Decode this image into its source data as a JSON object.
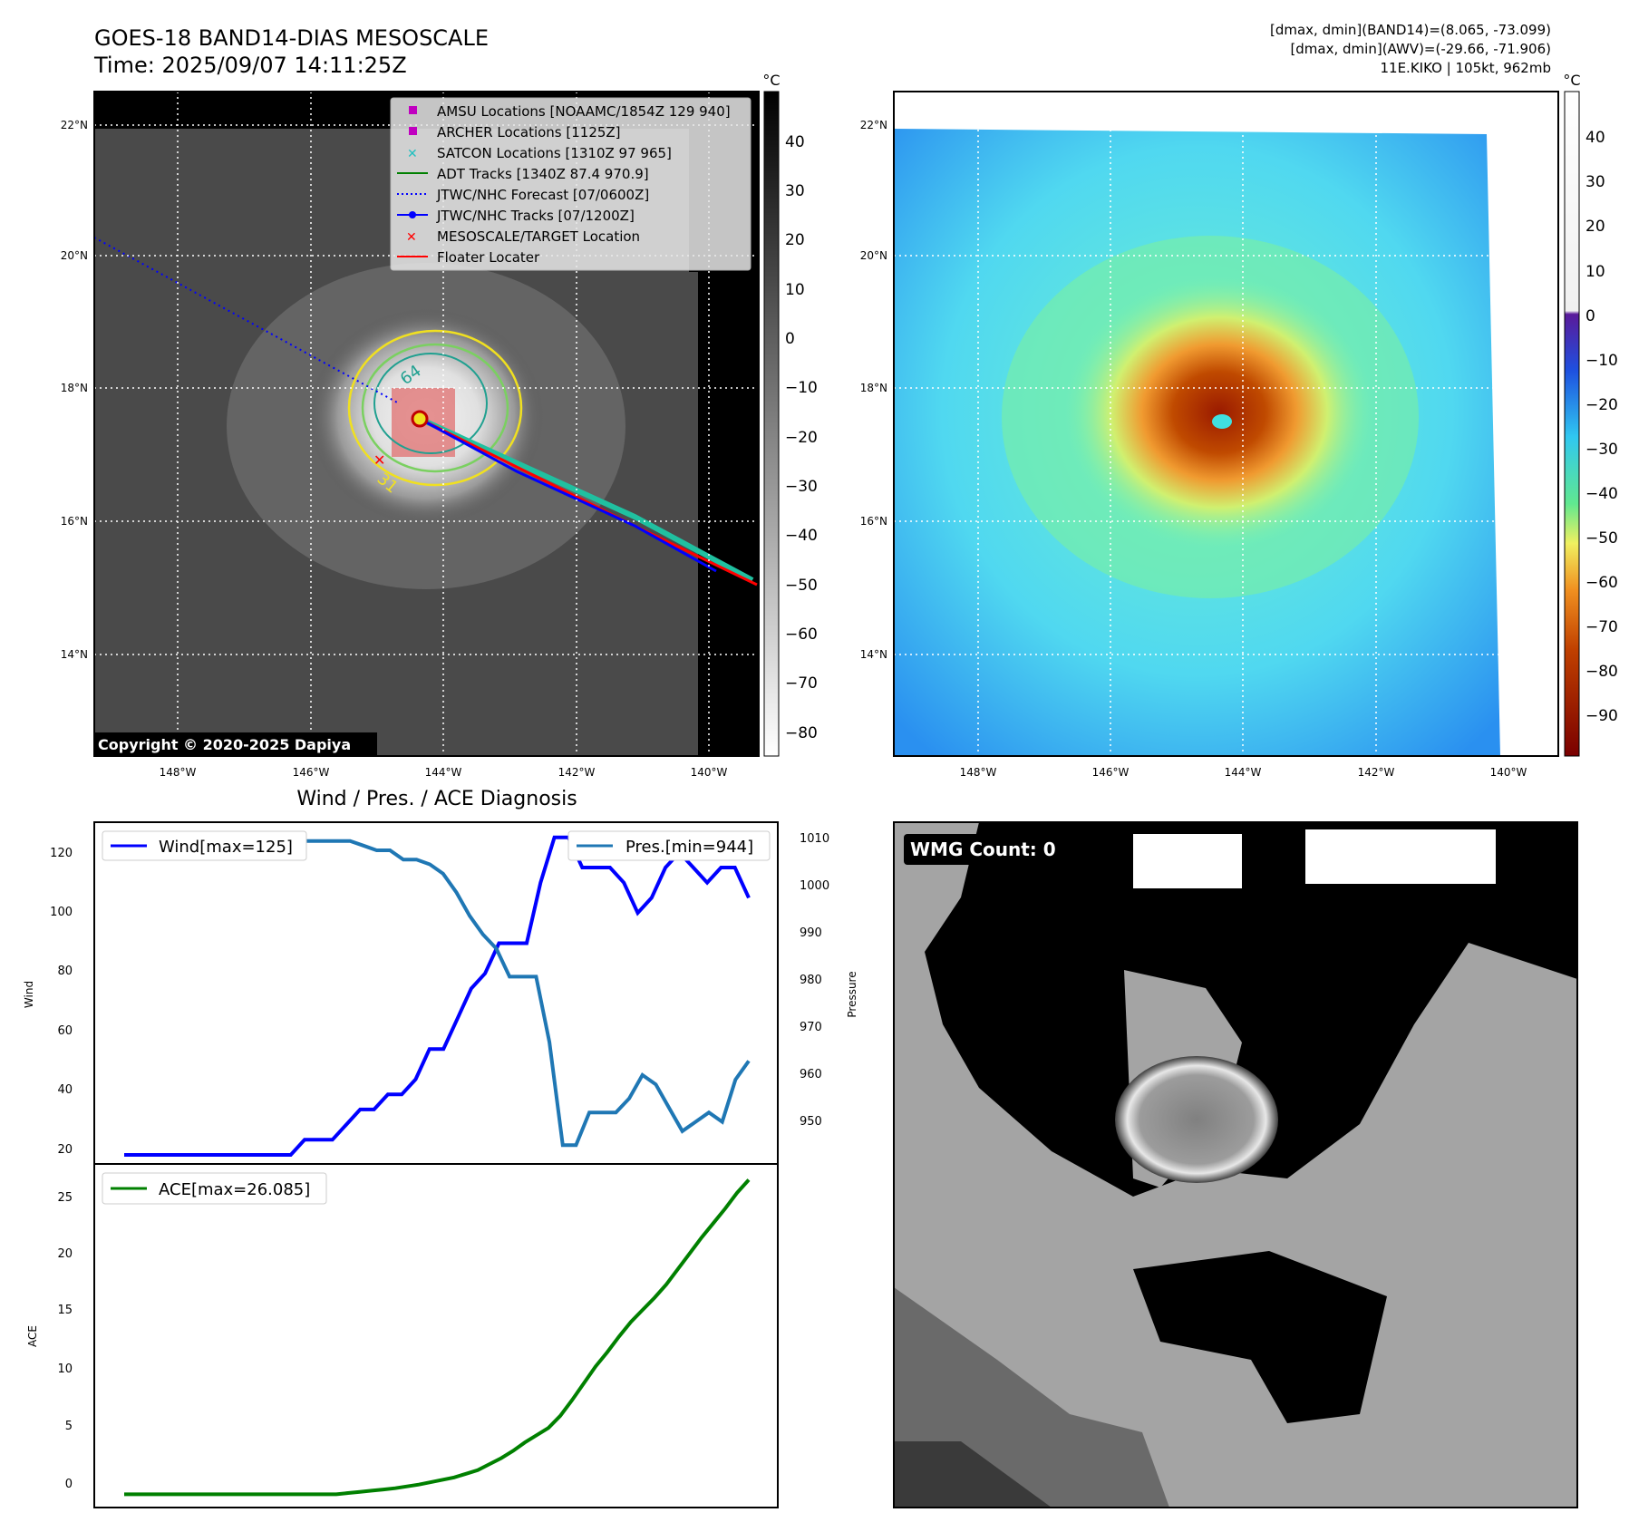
{
  "header": {
    "title": "GOES-18 BAND14-DIAS MESOSCALE",
    "time": "Time: 2025/09/07 14:11:25Z",
    "stats_line1": "[dmax, dmin](BAND14)=(8.065, -73.099)",
    "stats_line2": "[dmax, dmin](AWV)=(-29.66, -71.906)",
    "storm_info": "11E.KIKO | 105kt, 962mb"
  },
  "map_axes": {
    "lat_labels": [
      "22°N",
      "20°N",
      "18°N",
      "16°N",
      "14°N"
    ],
    "lon_labels": [
      "148°W",
      "146°W",
      "144°W",
      "142°W",
      "140°W"
    ],
    "unit": "°C"
  },
  "ir_panel": {
    "colorbar_ticks": [
      "40",
      "30",
      "20",
      "10",
      "0",
      "−10",
      "−20",
      "−30",
      "−40",
      "−50",
      "−60",
      "−70",
      "−80"
    ],
    "legend": [
      {
        "label": "AMSU Locations [NOAAMC/1854Z 129 940]",
        "color": "#c000c0",
        "marker": "square"
      },
      {
        "label": "ARCHER Locations [1125Z]",
        "color": "#c000c0",
        "marker": "square"
      },
      {
        "label": "SATCON Locations [1310Z 97 965]",
        "color": "#20c0c0",
        "marker": "x"
      },
      {
        "label": "ADT Tracks [1340Z 87.4 970.9]",
        "color": "#008000",
        "marker": "line"
      },
      {
        "label": "JTWC/NHC Forecast [07/0600Z]",
        "color": "#0000ff",
        "marker": "dotted"
      },
      {
        "label": "JTWC/NHC Tracks [07/1200Z]",
        "color": "#0000ff",
        "marker": "line-dot"
      },
      {
        "label": "MESOSCALE/TARGET Location",
        "color": "#ff0000",
        "marker": "x"
      },
      {
        "label": "Floater Locater",
        "color": "#ff0000",
        "marker": "line"
      }
    ],
    "contour_labels": [
      "64",
      "31"
    ],
    "copyright": "Copyright © 2020-2025 Dapiya"
  },
  "awv_panel": {
    "colorbar_ticks": [
      "40",
      "30",
      "20",
      "10",
      "0",
      "−10",
      "−20",
      "−30",
      "−40",
      "−50",
      "−60",
      "−70",
      "−80",
      "−90"
    ]
  },
  "diagnosis": {
    "title": "Wind / Pres. / ACE Diagnosis",
    "wind_ylabel": "Wind",
    "pres_ylabel": "Pressure",
    "ace_ylabel": "ACE",
    "wind_legend": "Wind[max=125]",
    "pres_legend": "Pres.[min=944]",
    "ace_legend": "ACE[max=26.085]",
    "wind_ticks": [
      "120",
      "100",
      "80",
      "60",
      "40",
      "20"
    ],
    "pres_ticks": [
      "1010",
      "1000",
      "990",
      "980",
      "970",
      "960",
      "950"
    ],
    "ace_ticks": [
      "25",
      "20",
      "15",
      "10",
      "5",
      "0"
    ]
  },
  "wmg_panel": {
    "label": "WMG Count: 0"
  },
  "chart_data": [
    {
      "type": "line",
      "title": "Wind / Pres. / ACE Diagnosis",
      "ylabel": "Wind",
      "ylim": [
        17,
        130
      ],
      "series": [
        {
          "name": "Wind[max=125]",
          "color": "#0000ff",
          "values": [
            20,
            20,
            20,
            20,
            20,
            20,
            20,
            20,
            20,
            20,
            20,
            20,
            20,
            25,
            25,
            25,
            30,
            35,
            35,
            40,
            40,
            45,
            55,
            55,
            65,
            75,
            80,
            90,
            90,
            90,
            110,
            125,
            125,
            115,
            115,
            115,
            110,
            100,
            105,
            115,
            120,
            115,
            110,
            115,
            115,
            105
          ]
        }
      ]
    },
    {
      "type": "line",
      "ylabel": "Pressure",
      "ylim": [
        940,
        1013
      ],
      "series": [
        {
          "name": "Pres.[min=944]",
          "color": "#1f77b4",
          "values": [
            1010,
            1010,
            1010,
            1010,
            1010,
            1010,
            1010,
            1010,
            1010,
            1010,
            1010,
            1010,
            1009,
            1009,
            1009,
            1009,
            1009,
            1009,
            1008,
            1007,
            1007,
            1005,
            1005,
            1004,
            1002,
            998,
            993,
            989,
            986,
            980,
            980,
            980,
            966,
            944,
            944,
            951,
            951,
            951,
            954,
            959,
            957,
            952,
            947,
            949,
            951,
            949,
            958,
            962
          ]
        }
      ]
    },
    {
      "type": "line",
      "ylabel": "ACE",
      "ylim": [
        -1.1,
        27.4
      ],
      "series": [
        {
          "name": "ACE[max=26.085]",
          "color": "#008000",
          "values": [
            0,
            0,
            0,
            0,
            0,
            0,
            0,
            0,
            0,
            0,
            0,
            0,
            0,
            0,
            0,
            0,
            0,
            0,
            0,
            0.1,
            0.2,
            0.3,
            0.4,
            0.5,
            0.65,
            0.8,
            1.0,
            1.2,
            1.4,
            1.7,
            2.0,
            2.5,
            3.0,
            3.6,
            4.3,
            4.9,
            5.5,
            6.5,
            7.8,
            9.2,
            10.6,
            11.8,
            13.1,
            14.3,
            15.3,
            16.3,
            17.4,
            18.7,
            20.0,
            21.3,
            22.5,
            23.7,
            25.0,
            26.085
          ]
        }
      ]
    }
  ]
}
